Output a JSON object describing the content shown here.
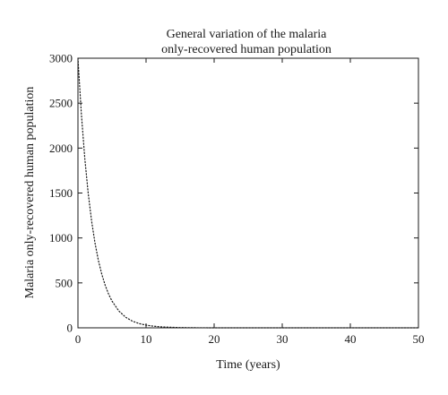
{
  "chart_data": {
    "type": "line",
    "title": "General variation of the malaria",
    "subtitle": "only-recovered human population",
    "xlabel": "Time (years)",
    "ylabel": "Malaria only-recovered human population",
    "xlim": [
      0,
      50
    ],
    "ylim": [
      0,
      3000
    ],
    "xticks": [
      "0",
      "10",
      "20",
      "30",
      "40",
      "50"
    ],
    "yticks": [
      "0",
      "500",
      "1000",
      "1500",
      "2000",
      "2500",
      "3000"
    ],
    "grid": false,
    "legend": "none",
    "line_style": "dotted",
    "line_color": "#1a1a1a",
    "series": [
      {
        "x": [
          0,
          0.5,
          1,
          1.5,
          2,
          2.5,
          3,
          3.5,
          4,
          4.5,
          5,
          6,
          7,
          8,
          9,
          10,
          11,
          12,
          13,
          14,
          15,
          17,
          20,
          25,
          30,
          35,
          40,
          45,
          50
        ],
        "y": [
          3000,
          2380,
          1890,
          1500,
          1190,
          945,
          750,
          596,
          473,
          375,
          298,
          188,
          118,
          74,
          47,
          30,
          19,
          12,
          8,
          5,
          3,
          1,
          0,
          0,
          0,
          0,
          0,
          0,
          0
        ]
      }
    ]
  }
}
